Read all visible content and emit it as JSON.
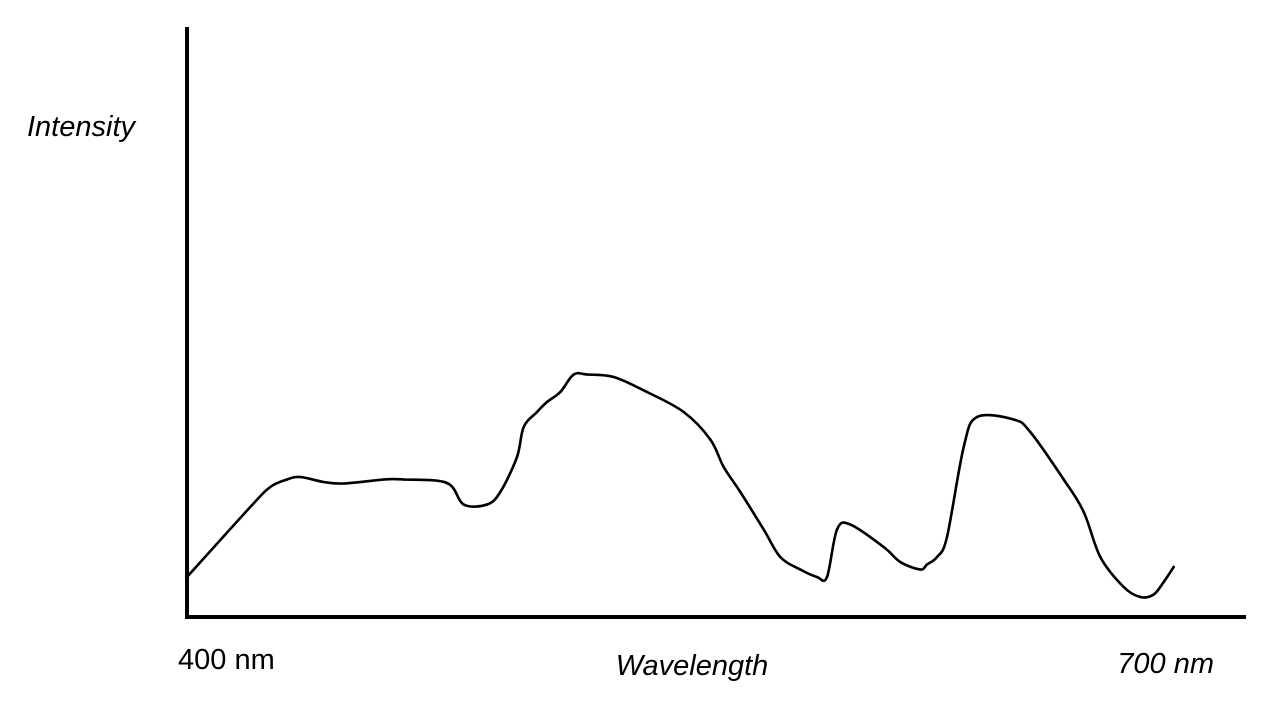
{
  "chart_data": {
    "type": "line",
    "title": "",
    "xlabel": "Wavelength",
    "ylabel": "Intensity",
    "xlim": [
      400,
      700
    ],
    "ylim": [
      0,
      100
    ],
    "grid": false,
    "legend": "none",
    "x_tick_labels": [
      {
        "value": 400,
        "label": "400 nm"
      },
      {
        "value": 700,
        "label": "700 nm"
      }
    ],
    "series": [
      {
        "color": "#000000",
        "x": [
          400,
          419,
          425,
          430,
          434,
          441,
          447,
          459,
          465,
          478,
          483,
          490,
          494,
          499,
          501,
          505,
          508,
          512,
          516,
          520,
          528,
          538,
          549,
          557,
          561,
          566,
          573,
          578,
          584,
          589,
          592,
          595,
          599,
          609,
          614,
          620,
          622,
          625,
          628,
          633,
          637,
          648,
          653,
          663,
          669,
          674,
          681,
          686,
          690,
          693,
          696
        ],
        "y": [
          8,
          22,
          26,
          27.5,
          28,
          27,
          26.7,
          27.5,
          27.5,
          26.8,
          22.5,
          22.5,
          25,
          32,
          38,
          41,
          43,
          45,
          48.5,
          48.5,
          48,
          45,
          41,
          35.5,
          30,
          25,
          17.5,
          12,
          9.5,
          8,
          8,
          17.5,
          18.5,
          14,
          11,
          9.5,
          10.5,
          12,
          16,
          34,
          40,
          39.5,
          37,
          27.5,
          21,
          12,
          6,
          4,
          4.5,
          7,
          10
        ]
      }
    ]
  }
}
